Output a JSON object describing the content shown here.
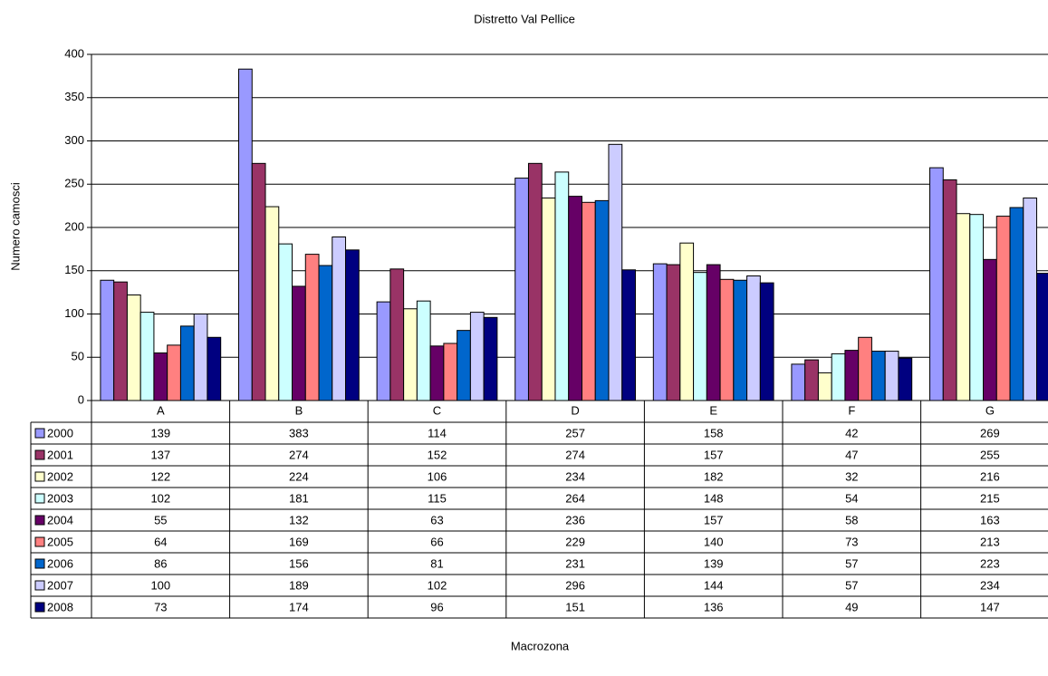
{
  "chart_data": {
    "type": "bar",
    "title": "Distretto Val Pellice",
    "x_label": "Macrozona",
    "y_label": "Numero camosci",
    "categories": [
      "A",
      "B",
      "C",
      "D",
      "E",
      "F",
      "G"
    ],
    "ylim": [
      0,
      400
    ],
    "yticks": [
      0,
      50,
      100,
      150,
      200,
      250,
      300,
      350,
      400
    ],
    "grid": true,
    "series": [
      {
        "name": "2000",
        "color": "#9999ff",
        "values": [
          139,
          383,
          114,
          257,
          158,
          42,
          269
        ]
      },
      {
        "name": "2001",
        "color": "#993366",
        "values": [
          137,
          274,
          152,
          274,
          157,
          47,
          255
        ]
      },
      {
        "name": "2002",
        "color": "#ffffcc",
        "values": [
          122,
          224,
          106,
          234,
          182,
          32,
          216
        ]
      },
      {
        "name": "2003",
        "color": "#ccffff",
        "values": [
          102,
          181,
          115,
          264,
          148,
          54,
          215
        ]
      },
      {
        "name": "2004",
        "color": "#660066",
        "values": [
          55,
          132,
          63,
          236,
          157,
          58,
          163
        ]
      },
      {
        "name": "2005",
        "color": "#ff8080",
        "values": [
          64,
          169,
          66,
          229,
          140,
          73,
          213
        ]
      },
      {
        "name": "2006",
        "color": "#0066cc",
        "values": [
          86,
          156,
          81,
          231,
          139,
          57,
          223
        ]
      },
      {
        "name": "2007",
        "color": "#ccccff",
        "values": [
          100,
          189,
          102,
          296,
          144,
          57,
          234
        ]
      },
      {
        "name": "2008",
        "color": "#000080",
        "values": [
          73,
          174,
          96,
          151,
          136,
          49,
          147
        ]
      }
    ]
  }
}
